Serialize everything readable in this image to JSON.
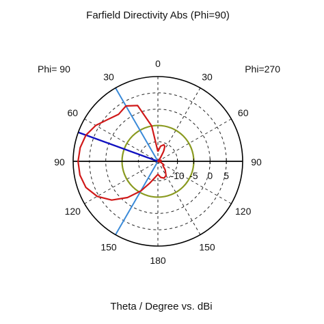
{
  "chart_data": {
    "type": "polar",
    "title": "Farfield Directivity Abs (Phi=90)",
    "xlabel": "Theta / Degree vs. dBi",
    "left_label": "Phi= 90",
    "right_label": "Phi=270",
    "angle_labels": [
      "0",
      "30",
      "60",
      "90",
      "120",
      "150",
      "180",
      "150",
      "120",
      "90",
      "60",
      "30"
    ],
    "angle_label_theta": [
      0,
      30,
      60,
      90,
      120,
      150,
      180,
      210,
      240,
      270,
      300,
      330
    ],
    "radial_labels": [
      "-10",
      "-5",
      "0",
      "5"
    ],
    "radial_label_values": [
      -10,
      -5,
      0,
      5
    ],
    "rlim": [
      -16,
      10
    ],
    "grid": true,
    "reference_circle_db": -5,
    "main_lobe_direction_deg": 290,
    "beam_edge_directions_deg": [
      330,
      210
    ],
    "series": [
      {
        "color": "#d01818",
        "theta": [
          0,
          10,
          20,
          25,
          30,
          35,
          40,
          50,
          60,
          70,
          80,
          90,
          100,
          110,
          120,
          130,
          140,
          150,
          160,
          170,
          180,
          190,
          200,
          210,
          220,
          230,
          240,
          250,
          260,
          270,
          280,
          290,
          300,
          310,
          315,
          320,
          330,
          340,
          350,
          360
        ],
        "values": [
          -13,
          -11.3,
          -10.6,
          -11,
          -12.5,
          -14.5,
          -15.5,
          -16,
          -15.5,
          -15,
          -15,
          -16,
          -15.5,
          -15,
          -14,
          -14,
          -12.5,
          -11,
          -10.5,
          -11,
          -12,
          -11,
          -9,
          -5.5,
          -1.5,
          2.5,
          5.5,
          7.5,
          8.3,
          8.5,
          8.2,
          7.5,
          6,
          4,
          3.3,
          2.8,
          3.6,
          2.2,
          -5,
          -13
        ]
      }
    ],
    "colors": {
      "pattern": "#d01818",
      "reference_circle": "#8a9a20",
      "main_lobe": "#1010c0",
      "beamwidth": "#3a8ad8",
      "axis": "#000000",
      "grid": "#222222"
    }
  }
}
